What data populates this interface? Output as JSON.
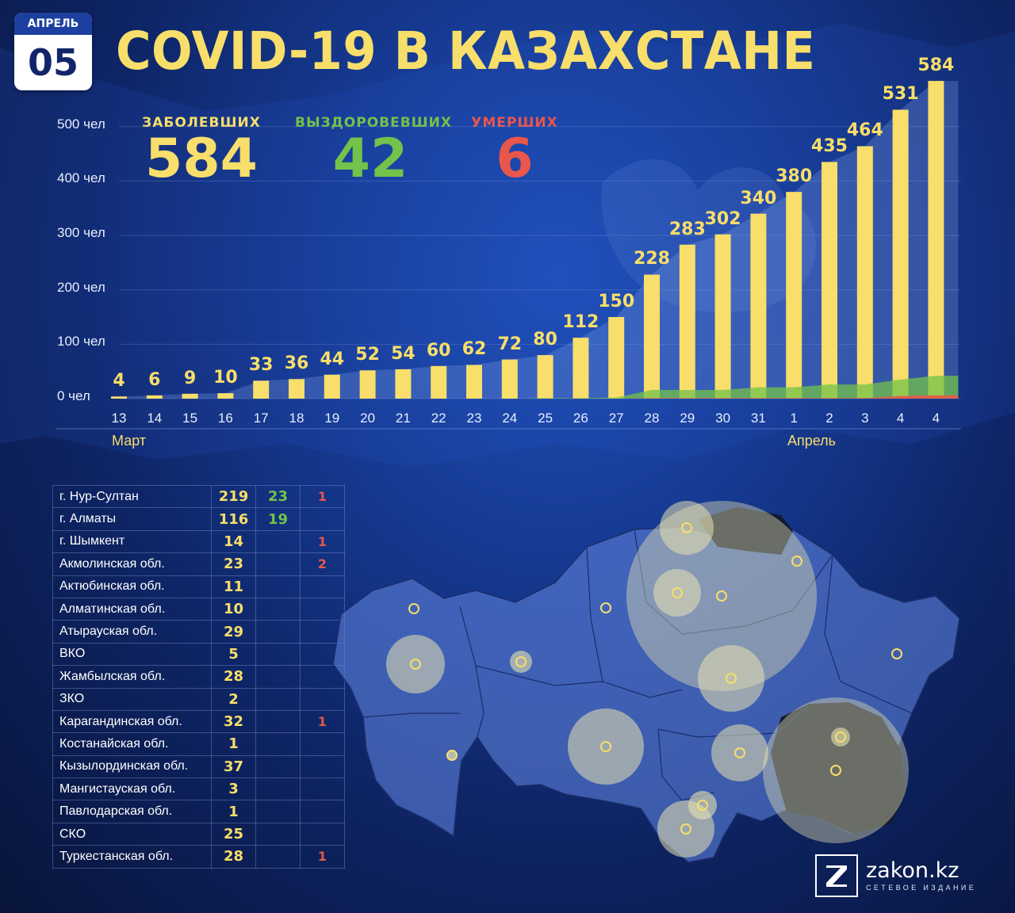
{
  "header": {
    "date_month": "АПРЕЛЬ",
    "date_day": "05",
    "title": "COVID-19 В КАЗАХСТАНЕ"
  },
  "stats": {
    "cases_label": "ЗАБОЛЕВШИХ",
    "cases_value": "584",
    "recovered_label": "ВЫЗДОРОВЕВШИХ",
    "recovered_value": "42",
    "deaths_label": "УМЕРШИХ",
    "deaths_value": "6"
  },
  "colors": {
    "cases": "#f8de6a",
    "recovered": "#73c24a",
    "deaths": "#e9564b",
    "badge_bg": "#ffffff",
    "badge_band": "#1d3f9f"
  },
  "chart_data": {
    "type": "bar",
    "categories": [
      "13",
      "14",
      "15",
      "16",
      "17",
      "18",
      "19",
      "20",
      "21",
      "22",
      "23",
      "24",
      "25",
      "26",
      "27",
      "28",
      "29",
      "30",
      "31",
      "1",
      "2",
      "3",
      "4",
      "4"
    ],
    "values": [
      4,
      6,
      9,
      10,
      33,
      36,
      44,
      52,
      54,
      60,
      62,
      72,
      80,
      112,
      150,
      228,
      283,
      302,
      340,
      380,
      435,
      464,
      531,
      584
    ],
    "recovered_band": [
      0,
      0,
      0,
      0,
      0,
      0,
      0,
      0,
      0,
      0,
      0,
      0,
      1,
      1,
      2,
      16,
      16,
      16,
      21,
      21,
      26,
      26,
      35,
      42
    ],
    "deaths_band": [
      0,
      0,
      0,
      0,
      0,
      0,
      0,
      0,
      0,
      0,
      0,
      0,
      0,
      0,
      0,
      1,
      1,
      1,
      1,
      1,
      1,
      1,
      5,
      6
    ],
    "yticks": [
      0,
      100,
      200,
      300,
      400,
      500
    ],
    "ytick_labels": [
      "0 чел",
      "100 чел",
      "200 чел",
      "300 чел",
      "400 чел",
      "500 чел"
    ],
    "ylim": [
      0,
      580
    ],
    "month_labels": [
      "Март",
      "Апрель"
    ],
    "grid": true,
    "legend": "none"
  },
  "regions": [
    {
      "name": "г. Нур-Султан",
      "cases": "219",
      "recovered": "23",
      "deaths": "1"
    },
    {
      "name": "г. Алматы",
      "cases": "116",
      "recovered": "19",
      "deaths": ""
    },
    {
      "name": "г. Шымкент",
      "cases": "14",
      "recovered": "",
      "deaths": "1"
    },
    {
      "name": "Акмолинская обл.",
      "cases": "23",
      "recovered": "",
      "deaths": "2"
    },
    {
      "name": "Актюбинская обл.",
      "cases": "11",
      "recovered": "",
      "deaths": ""
    },
    {
      "name": "Алматинская обл.",
      "cases": "10",
      "recovered": "",
      "deaths": ""
    },
    {
      "name": "Атырауская обл.",
      "cases": "29",
      "recovered": "",
      "deaths": ""
    },
    {
      "name": "ВКО",
      "cases": "5",
      "recovered": "",
      "deaths": ""
    },
    {
      "name": "Жамбылская обл.",
      "cases": "28",
      "recovered": "",
      "deaths": ""
    },
    {
      "name": "ЗКО",
      "cases": "2",
      "recovered": "",
      "deaths": ""
    },
    {
      "name": "Карагандинская обл.",
      "cases": "32",
      "recovered": "",
      "deaths": "1"
    },
    {
      "name": "Костанайская обл.",
      "cases": "1",
      "recovered": "",
      "deaths": ""
    },
    {
      "name": "Кызылординская обл.",
      "cases": "37",
      "recovered": "",
      "deaths": ""
    },
    {
      "name": "Мангистауская обл.",
      "cases": "3",
      "recovered": "",
      "deaths": ""
    },
    {
      "name": "Павлодарская обл.",
      "cases": "1",
      "recovered": "",
      "deaths": ""
    },
    {
      "name": "СКО",
      "cases": "25",
      "recovered": "",
      "deaths": ""
    },
    {
      "name": "Туркестанская обл.",
      "cases": "28",
      "recovered": "",
      "deaths": "1"
    }
  ],
  "logo": {
    "icon": "z-logo-icon",
    "name": "zakon.kz",
    "subtitle": "СЕТЕВОЕ ИЗДАНИЕ"
  }
}
